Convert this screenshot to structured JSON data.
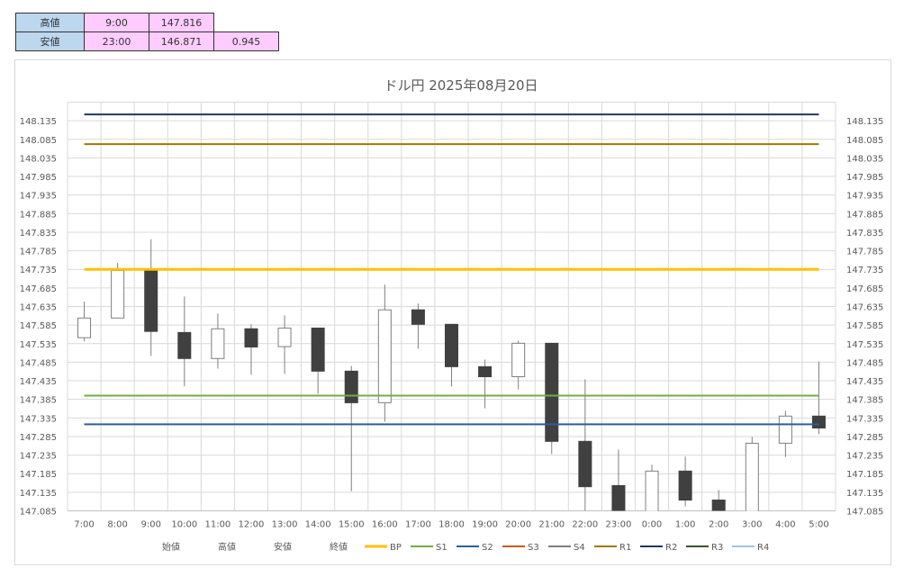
{
  "summary": {
    "rows": [
      {
        "label": "高値",
        "time": "9:00",
        "price": "147.816",
        "extra": ""
      },
      {
        "label": "安値",
        "time": "23:00",
        "price": "146.871",
        "extra": "0.945"
      }
    ]
  },
  "chart_data": {
    "type": "candlestick",
    "title": "ドル円  2025年08月20日",
    "ylim": [
      147.085,
      148.185
    ],
    "yticks": [
      "147.085",
      "147.135",
      "147.185",
      "147.235",
      "147.285",
      "147.335",
      "147.385",
      "147.435",
      "147.485",
      "147.535",
      "147.585",
      "147.635",
      "147.685",
      "147.735",
      "147.785",
      "147.835",
      "147.885",
      "147.935",
      "147.985",
      "148.035",
      "148.085",
      "148.135"
    ],
    "grid": true,
    "legend_position": "bottom",
    "categories": [
      "7:00",
      "8:00",
      "9:00",
      "10:00",
      "11:00",
      "12:00",
      "13:00",
      "14:00",
      "15:00",
      "16:00",
      "17:00",
      "18:00",
      "19:00",
      "20:00",
      "21:00",
      "22:00",
      "23:00",
      "0:00",
      "1:00",
      "2:00",
      "3:00",
      "4:00",
      "5:00"
    ],
    "open": [
      147.551,
      147.604,
      147.732,
      147.565,
      147.495,
      147.575,
      147.527,
      147.577,
      147.461,
      147.376,
      147.626,
      147.587,
      147.473,
      147.446,
      147.536,
      147.272,
      147.153,
      147.05,
      147.192,
      147.114,
      147.05,
      147.267,
      147.34
    ],
    "high": [
      147.648,
      147.752,
      147.816,
      147.662,
      147.616,
      147.587,
      147.611,
      147.577,
      147.475,
      147.694,
      147.643,
      147.587,
      147.492,
      147.543,
      147.536,
      147.439,
      147.25,
      147.209,
      147.231,
      147.141,
      147.284,
      147.354,
      147.487
    ],
    "low": [
      147.541,
      147.604,
      147.502,
      147.42,
      147.468,
      147.451,
      147.454,
      147.4,
      147.138,
      147.325,
      147.521,
      147.42,
      147.361,
      147.412,
      147.238,
      146.95,
      146.871,
      147.0,
      147.097,
      147.0,
      147.0,
      147.23,
      147.291
    ],
    "close": [
      147.604,
      147.732,
      147.568,
      147.495,
      147.575,
      147.526,
      147.577,
      147.461,
      147.376,
      147.626,
      147.587,
      147.473,
      147.446,
      147.536,
      147.272,
      147.15,
      146.98,
      147.192,
      147.114,
      147.06,
      147.267,
      147.34,
      147.308
    ],
    "legend_ohlc": [
      "始値",
      "高値",
      "安値",
      "終値"
    ],
    "lines": [
      {
        "name": "BP",
        "value": 147.735,
        "color": "#ffc000",
        "draw": true
      },
      {
        "name": "S1",
        "value": 147.395,
        "color": "#70ad47",
        "draw": true
      },
      {
        "name": "S2",
        "value": 147.318,
        "color": "#2e5e9a",
        "draw": true
      },
      {
        "name": "S3",
        "value": null,
        "color": "#c55a11",
        "draw": false
      },
      {
        "name": "S4",
        "value": null,
        "color": "#7f7f7f",
        "draw": false
      },
      {
        "name": "R1",
        "value": 148.072,
        "color": "#9c7a00",
        "draw": true
      },
      {
        "name": "R2",
        "value": 148.152,
        "color": "#1f3864",
        "draw": true
      },
      {
        "name": "R3",
        "value": null,
        "color": "#375623",
        "draw": false
      },
      {
        "name": "R4",
        "value": null,
        "color": "#9dc3e6",
        "draw": false
      }
    ]
  }
}
